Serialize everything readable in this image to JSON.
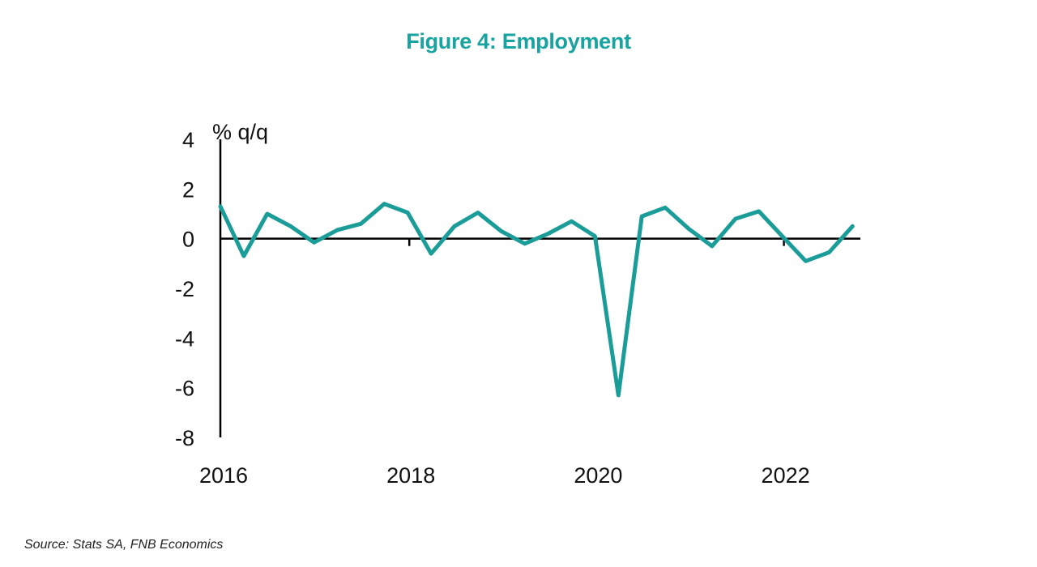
{
  "title": "Figure 4: Employment",
  "source": "Source: Stats SA, FNB Economics",
  "chart_data": {
    "type": "line",
    "title": "Figure 4: Employment",
    "ylabel": "% q/q",
    "xlabel": "",
    "ylim": [
      -8,
      4
    ],
    "yticks": [
      "4",
      "2",
      "0",
      "-2",
      "-4",
      "-6",
      "-8"
    ],
    "xtick_labels": [
      "2016",
      "2018",
      "2020",
      "2022"
    ],
    "grid": false,
    "line_color": "#1a9c99",
    "series": [
      {
        "x": [
          "2016Q1",
          "2016Q2",
          "2016Q3",
          "2016Q4",
          "2017Q1",
          "2017Q2",
          "2017Q3",
          "2017Q4",
          "2018Q1",
          "2018Q2",
          "2018Q3",
          "2018Q4",
          "2019Q1",
          "2019Q2",
          "2019Q3",
          "2019Q4",
          "2020Q1",
          "2020Q2",
          "2020Q3",
          "2020Q4",
          "2021Q1",
          "2021Q2",
          "2021Q3",
          "2021Q4",
          "2022Q1",
          "2022Q2",
          "2022Q3",
          "2022Q4"
        ],
        "values": [
          1.3,
          -0.7,
          1.0,
          0.5,
          -0.15,
          0.35,
          0.6,
          1.4,
          1.05,
          -0.6,
          0.5,
          1.05,
          0.3,
          -0.2,
          0.2,
          0.7,
          0.1,
          -6.3,
          0.9,
          1.25,
          0.4,
          -0.3,
          0.8,
          1.1,
          0.1,
          -0.9,
          -0.55,
          0.5
        ]
      }
    ]
  }
}
